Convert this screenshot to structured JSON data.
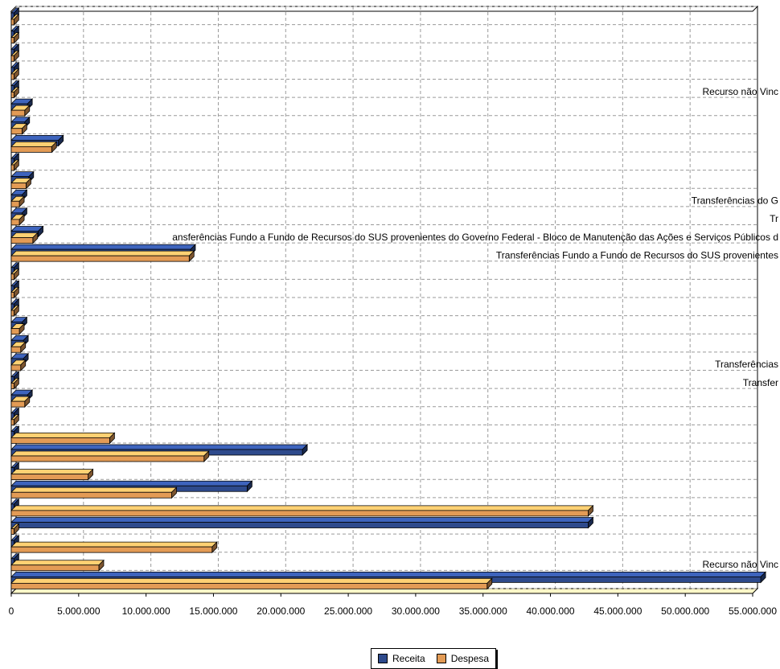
{
  "chart_data": {
    "type": "bar",
    "orientation": "horizontal",
    "xlim": [
      0,
      55000000
    ],
    "x_ticks": [
      "0",
      "5.000.000",
      "10.000.000",
      "15.000.000",
      "20.000.000",
      "25.000.000",
      "30.000.000",
      "35.000.000",
      "40.000.000",
      "45.000.000",
      "50.000.000",
      "55.000.000"
    ],
    "grid": true,
    "legend_position": "bottom",
    "series": [
      {
        "name": "Receita",
        "color": "#2e4a8c",
        "values": [
          200000,
          200000,
          200000,
          200000,
          200000,
          1200000,
          1000000,
          3500000,
          200000,
          1300000,
          800000,
          800000,
          2000000,
          13300000,
          200000,
          200000,
          200000,
          800000,
          900000,
          900000,
          200000,
          1200000,
          200000,
          200000,
          21600000,
          200000,
          17500000,
          200000,
          42800000,
          200000,
          200000,
          55600000
        ]
      },
      {
        "name": "Despesa",
        "color": "#e39b55",
        "values": [
          200000,
          200000,
          200000,
          200000,
          200000,
          1000000,
          800000,
          3000000,
          200000,
          1100000,
          600000,
          600000,
          1600000,
          13200000,
          200000,
          200000,
          200000,
          600000,
          700000,
          700000,
          200000,
          1000000,
          200000,
          7300000,
          14300000,
          5700000,
          11900000,
          42800000,
          200000,
          14900000,
          6500000,
          35300000
        ]
      }
    ],
    "annotations": [
      {
        "text": "Recurso não Vinc",
        "category_index": 4
      },
      {
        "text": "Transferências do G",
        "category_index": 10
      },
      {
        "text": "Tr",
        "category_index": 11
      },
      {
        "text": "ansferências Fundo a Fundo de Recursos do SUS provenientes do Governo Federal - Bloco de Manutenção das Ações e Serviços Públicos d",
        "category_index": 12
      },
      {
        "text": "Transferências Fundo a Fundo de Recursos do SUS provenientes",
        "category_index": 13
      },
      {
        "text": "Transferências",
        "category_index": 19
      },
      {
        "text": "Transfer",
        "category_index": 20
      },
      {
        "text": "Recurso não Vinc",
        "category_index": 30
      }
    ]
  }
}
